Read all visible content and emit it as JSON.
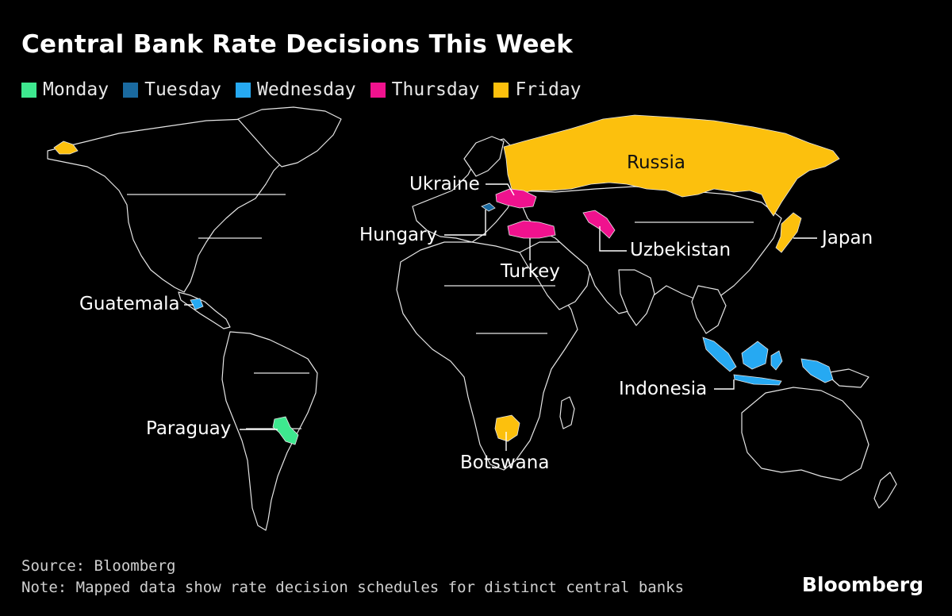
{
  "title": "Central Bank Rate Decisions This Week",
  "legend": [
    {
      "label": "Monday",
      "color": "#3ee88f"
    },
    {
      "label": "Tuesday",
      "color": "#1a6aa0"
    },
    {
      "label": "Wednesday",
      "color": "#26a9f2"
    },
    {
      "label": "Thursday",
      "color": "#f0128e"
    },
    {
      "label": "Friday",
      "color": "#fcc00d"
    }
  ],
  "countries": {
    "russia": {
      "label": "Russia",
      "day": "Friday"
    },
    "ukraine": {
      "label": "Ukraine",
      "day": "Thursday"
    },
    "hungary": {
      "label": "Hungary",
      "day": "Tuesday"
    },
    "turkey": {
      "label": "Turkey",
      "day": "Thursday"
    },
    "uzbekistan": {
      "label": "Uzbekistan",
      "day": "Thursday"
    },
    "japan": {
      "label": "Japan",
      "day": "Friday"
    },
    "guatemala": {
      "label": "Guatemala",
      "day": "Wednesday"
    },
    "indonesia": {
      "label": "Indonesia",
      "day": "Wednesday"
    },
    "paraguay": {
      "label": "Paraguay",
      "day": "Monday"
    },
    "botswana": {
      "label": "Botswana",
      "day": "Friday"
    }
  },
  "footer": {
    "source": "Source: Bloomberg",
    "note": "Note: Mapped data show rate decision schedules for distinct central banks"
  },
  "brand": "Bloomberg"
}
